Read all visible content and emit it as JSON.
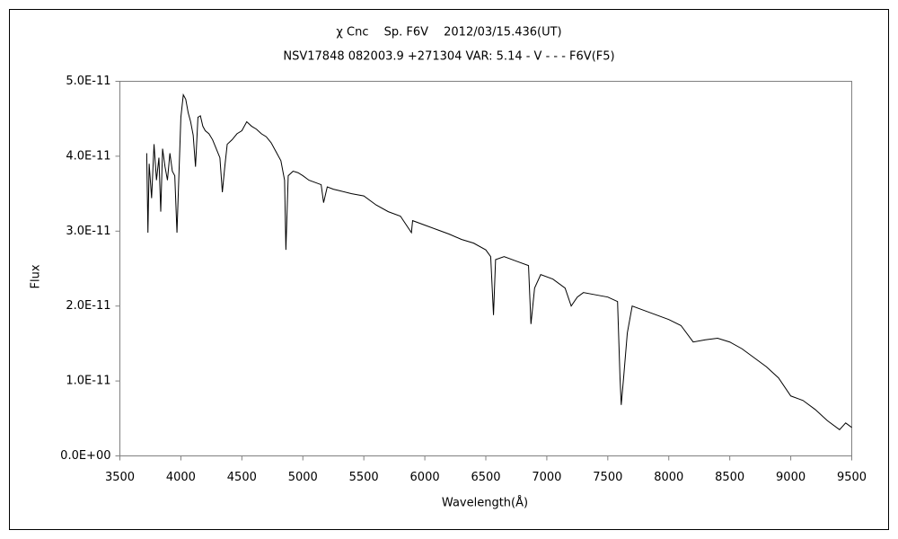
{
  "chart_data": {
    "type": "line",
    "title": "χ Cnc　 Sp. F6V　 2012/03/15.436(UT)",
    "subtitle": "NSV17848 082003.9 +271304 VAR: 5.14 - V - - - F6V(F5)",
    "x_label": "Wavelength(Å)",
    "y_label": "Flux",
    "xlim": [
      3500,
      9500
    ],
    "xticks": [
      3500,
      4000,
      4500,
      5000,
      5500,
      6000,
      6500,
      7000,
      7500,
      8000,
      8500,
      9000,
      9500
    ],
    "ylim": [
      0,
      5e-11
    ],
    "yticks": [
      {
        "value": 0,
        "label": "0.0E+00"
      },
      {
        "value": 1e-11,
        "label": "1.0E-11"
      },
      {
        "value": 2e-11,
        "label": "2.0E-11"
      },
      {
        "value": 3e-11,
        "label": "3.0E-11"
      },
      {
        "value": 4e-11,
        "label": "4.0E-11"
      },
      {
        "value": 5e-11,
        "label": "5.0E-11"
      }
    ],
    "grid": false,
    "series": [
      {
        "color": "#000000",
        "x": [
          3720,
          3730,
          3740,
          3760,
          3780,
          3800,
          3820,
          3835,
          3850,
          3870,
          3890,
          3910,
          3930,
          3950,
          3968,
          3990,
          4000,
          4020,
          4040,
          4060,
          4080,
          4101,
          4120,
          4140,
          4160,
          4180,
          4200,
          4230,
          4260,
          4290,
          4320,
          4340,
          4360,
          4380,
          4420,
          4460,
          4500,
          4540,
          4580,
          4620,
          4660,
          4700,
          4740,
          4780,
          4820,
          4850,
          4861,
          4880,
          4920,
          4960,
          5000,
          5050,
          5100,
          5150,
          5170,
          5200,
          5250,
          5300,
          5400,
          5500,
          5600,
          5700,
          5800,
          5890,
          5900,
          6000,
          6100,
          6200,
          6300,
          6400,
          6500,
          6540,
          6563,
          6580,
          6650,
          6750,
          6850,
          6870,
          6900,
          6950,
          7050,
          7150,
          7200,
          7250,
          7300,
          7400,
          7500,
          7580,
          7600,
          7610,
          7630,
          7660,
          7700,
          7800,
          7900,
          8000,
          8100,
          8200,
          8300,
          8400,
          8500,
          8600,
          8700,
          8800,
          8900,
          9000,
          9100,
          9200,
          9300,
          9400,
          9450,
          9500
        ],
        "values": [
          4.04e-11,
          2.98e-11,
          3.9e-11,
          3.44e-11,
          4.16e-11,
          3.68e-11,
          3.98e-11,
          3.26e-11,
          4.1e-11,
          3.86e-11,
          3.68e-11,
          4.04e-11,
          3.8e-11,
          3.74e-11,
          2.98e-11,
          4.04e-11,
          4.52e-11,
          4.82e-11,
          4.76e-11,
          4.58e-11,
          4.46e-11,
          4.28e-11,
          3.86e-11,
          4.52e-11,
          4.54e-11,
          4.4e-11,
          4.34e-11,
          4.3e-11,
          4.22e-11,
          4.1e-11,
          3.98e-11,
          3.52e-11,
          3.86e-11,
          4.16e-11,
          4.22e-11,
          4.3e-11,
          4.34e-11,
          4.46e-11,
          4.4e-11,
          4.36e-11,
          4.3e-11,
          4.26e-11,
          4.18e-11,
          4.06e-11,
          3.94e-11,
          3.68e-11,
          2.75e-11,
          3.74e-11,
          3.8e-11,
          3.78e-11,
          3.74e-11,
          3.68e-11,
          3.65e-11,
          3.62e-11,
          3.38e-11,
          3.59e-11,
          3.56e-11,
          3.54e-11,
          3.5e-11,
          3.47e-11,
          3.35e-11,
          3.26e-11,
          3.2e-11,
          2.98e-11,
          3.14e-11,
          3.08e-11,
          3.02e-11,
          2.96e-11,
          2.89e-11,
          2.84e-11,
          2.75e-11,
          2.66e-11,
          1.88e-11,
          2.62e-11,
          2.66e-11,
          2.6e-11,
          2.54e-11,
          1.76e-11,
          2.24e-11,
          2.42e-11,
          2.36e-11,
          2.24e-11,
          2e-11,
          2.12e-11,
          2.18e-11,
          2.15e-11,
          2.12e-11,
          2.06e-11,
          1.05e-11,
          6.8e-12,
          1.05e-11,
          1.64e-11,
          2e-11,
          1.94e-11,
          1.88e-11,
          1.82e-11,
          1.74e-11,
          1.52e-11,
          1.55e-11,
          1.57e-11,
          1.52e-11,
          1.43e-11,
          1.31e-11,
          1.19e-11,
          1.04e-11,
          8e-12,
          7.4e-12,
          6.2e-12,
          4.7e-12,
          3.5e-12,
          4.4e-12,
          3.8e-12
        ]
      }
    ]
  }
}
